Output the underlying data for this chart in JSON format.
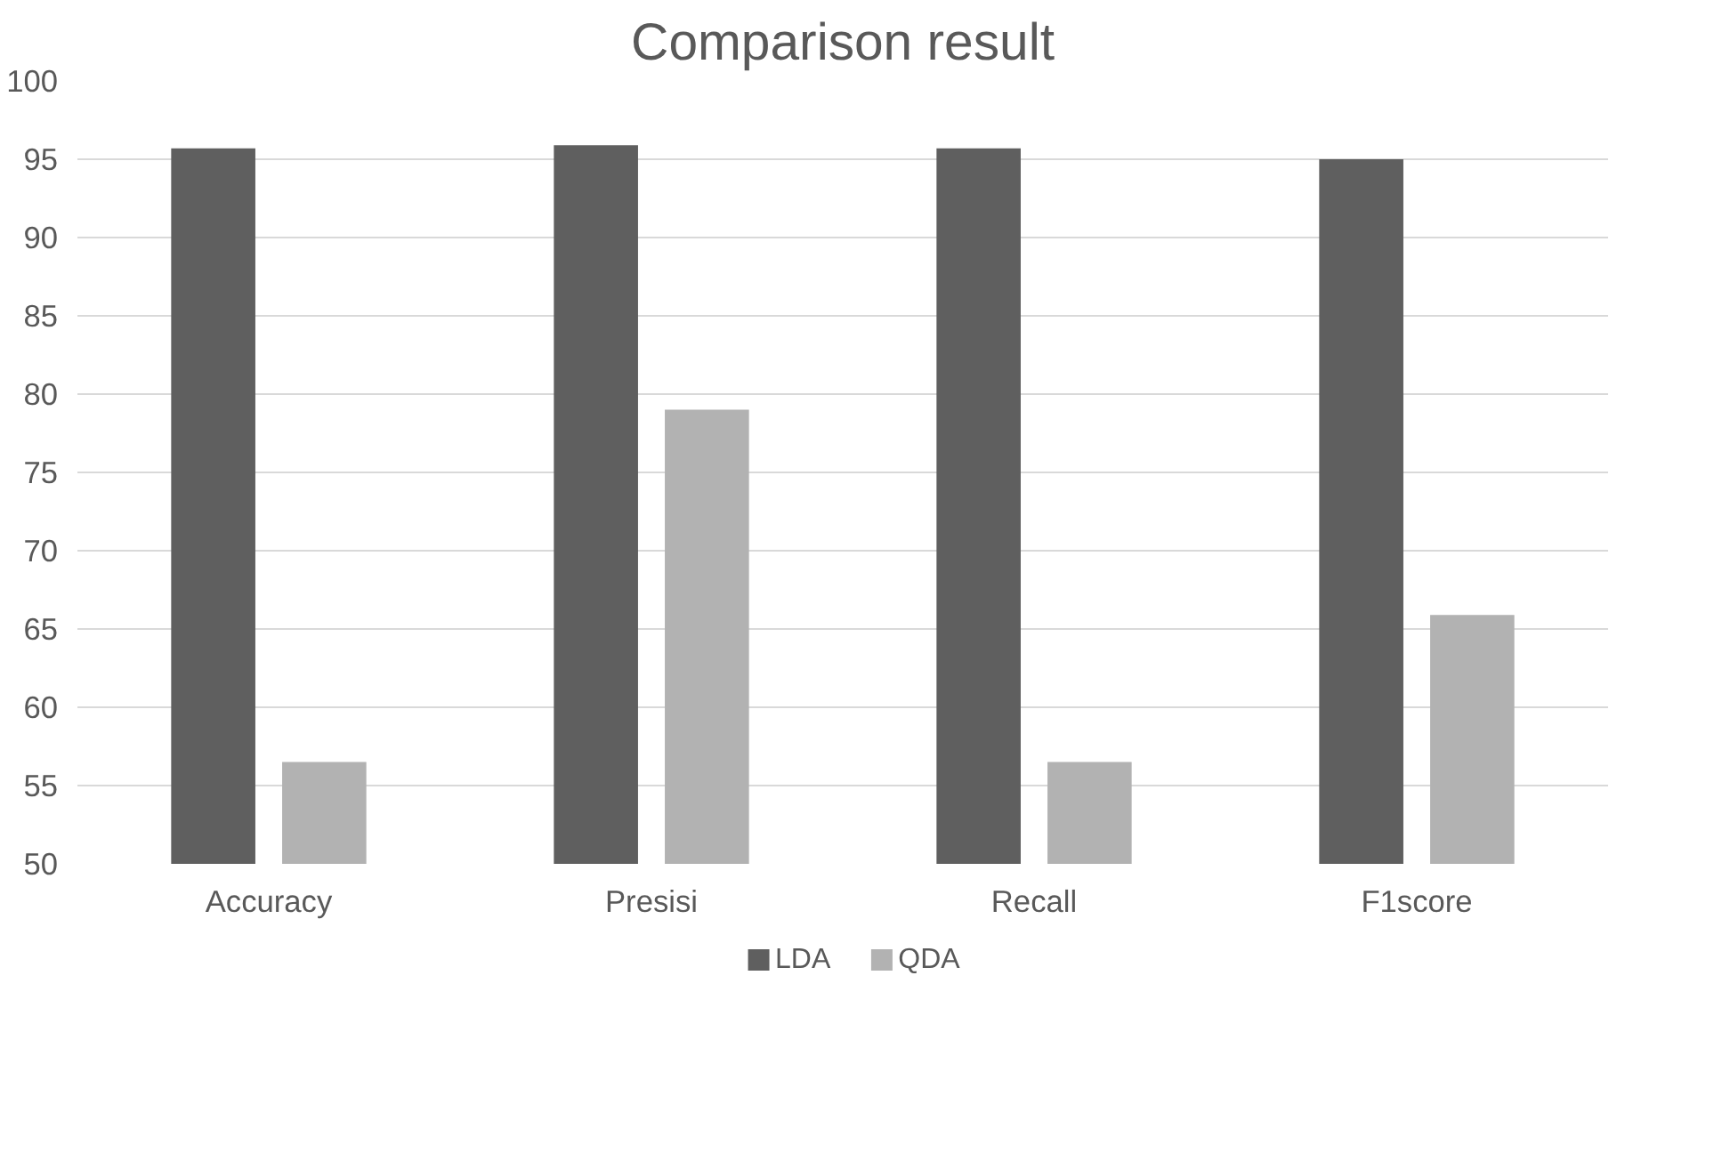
{
  "chart_data": {
    "type": "bar",
    "title": "Comparison result",
    "categories": [
      "Accuracy",
      "Presisi",
      "Recall",
      "F1score"
    ],
    "series": [
      {
        "name": "LDA",
        "color": "#5f5f5f",
        "values": [
          95.7,
          95.9,
          95.7,
          95.0
        ]
      },
      {
        "name": "QDA",
        "color": "#b2b2b2",
        "values": [
          56.5,
          79.0,
          56.5,
          65.9
        ]
      }
    ],
    "ylim": [
      50,
      100
    ],
    "yticks": [
      50,
      55,
      60,
      65,
      70,
      75,
      80,
      85,
      90,
      95,
      100
    ],
    "grid": "y",
    "legend": "bottom"
  }
}
